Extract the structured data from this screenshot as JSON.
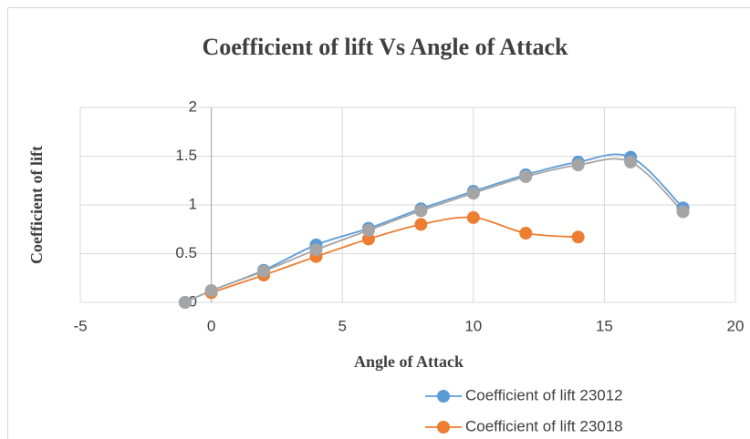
{
  "chart_data": {
    "type": "scatter",
    "title": "Coefficient of lift Vs Angle of Attack",
    "x_label": "Angle of Attack",
    "y_label": "Coefficient of lift",
    "series": [
      {
        "name": "Coefficient of lift 23012",
        "color": "#5b9bd5",
        "x": [
          -1,
          0,
          2,
          4,
          6,
          8,
          10,
          12,
          14,
          16,
          18
        ],
        "values": [
          0,
          0.12,
          0.33,
          0.59,
          0.76,
          0.96,
          1.14,
          1.31,
          1.44,
          1.49,
          0.97
        ]
      },
      {
        "name": "Coefficient of lift 23018",
        "color": "#ed7d31",
        "x": [
          0,
          2,
          4,
          6,
          8,
          10,
          12,
          14
        ],
        "values": [
          0.1,
          0.28,
          0.47,
          0.65,
          0.8,
          0.87,
          0.71,
          0.67
        ]
      },
      {
        "color": "#a5a5a5",
        "x": [
          -1,
          0,
          2,
          4,
          6,
          8,
          10,
          12,
          14,
          16,
          18
        ],
        "values": [
          0,
          0.12,
          0.32,
          0.54,
          0.74,
          0.94,
          1.12,
          1.29,
          1.41,
          1.44,
          0.93
        ]
      }
    ],
    "xlim": [
      -5,
      20
    ],
    "xticks": [
      -5,
      0,
      5,
      10,
      15,
      20
    ],
    "ylim": [
      0,
      2
    ],
    "yticks": [
      0,
      0.5,
      1,
      1.5,
      2
    ],
    "grid": true,
    "smooth": true
  }
}
